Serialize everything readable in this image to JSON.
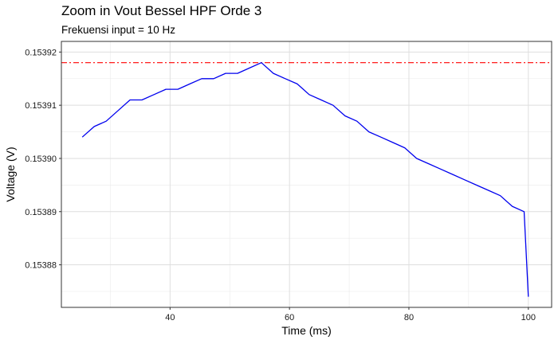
{
  "chart_data": {
    "type": "line",
    "title": "Zoom in Vout Bessel HPF Orde 3",
    "subtitle": "Frekuensi input = 10 Hz",
    "xlabel": "Time (ms)",
    "ylabel": "Voltage (V)",
    "xlim": [
      21.8,
      103.9
    ],
    "ylim": [
      0.153872,
      0.153922
    ],
    "x_ticks": [
      40,
      60,
      80,
      100
    ],
    "x_tick_labels": [
      "40",
      "60",
      "80",
      "100"
    ],
    "y_ticks": [
      0.15388,
      0.15389,
      0.1539,
      0.15391,
      0.15392
    ],
    "y_tick_labels": [
      "0.15388",
      "0.15389",
      "0.15390",
      "0.15391",
      "0.15392"
    ],
    "grid": true,
    "legend": "none",
    "series": [
      {
        "color": "#0000ee",
        "line_style": "solid",
        "x": [
          25.3,
          27.3,
          29.3,
          31.3,
          33.3,
          35.3,
          37.3,
          39.3,
          41.3,
          43.3,
          45.3,
          47.3,
          49.3,
          51.3,
          53.3,
          55.3,
          57.3,
          59.3,
          61.3,
          63.3,
          65.3,
          67.3,
          69.3,
          71.3,
          73.3,
          75.3,
          77.3,
          79.3,
          81.3,
          83.3,
          85.3,
          87.3,
          89.3,
          91.3,
          93.3,
          95.3,
          97.3,
          99.3,
          100.0
        ],
        "y": [
          0.153904,
          0.153906,
          0.153907,
          0.153909,
          0.153911,
          0.153911,
          0.153912,
          0.153913,
          0.153913,
          0.153914,
          0.153915,
          0.153915,
          0.153916,
          0.153916,
          0.153917,
          0.153918,
          0.153916,
          0.153915,
          0.153914,
          0.153912,
          0.153911,
          0.15391,
          0.153908,
          0.153907,
          0.153905,
          0.153904,
          0.153903,
          0.153902,
          0.1539,
          0.153899,
          0.153898,
          0.153897,
          0.153896,
          0.153895,
          0.153894,
          0.153893,
          0.153891,
          0.15389,
          0.153874
        ]
      }
    ],
    "reference_line": {
      "y": 0.153918,
      "color": "#ff0000",
      "line_style": "dashdot"
    }
  }
}
